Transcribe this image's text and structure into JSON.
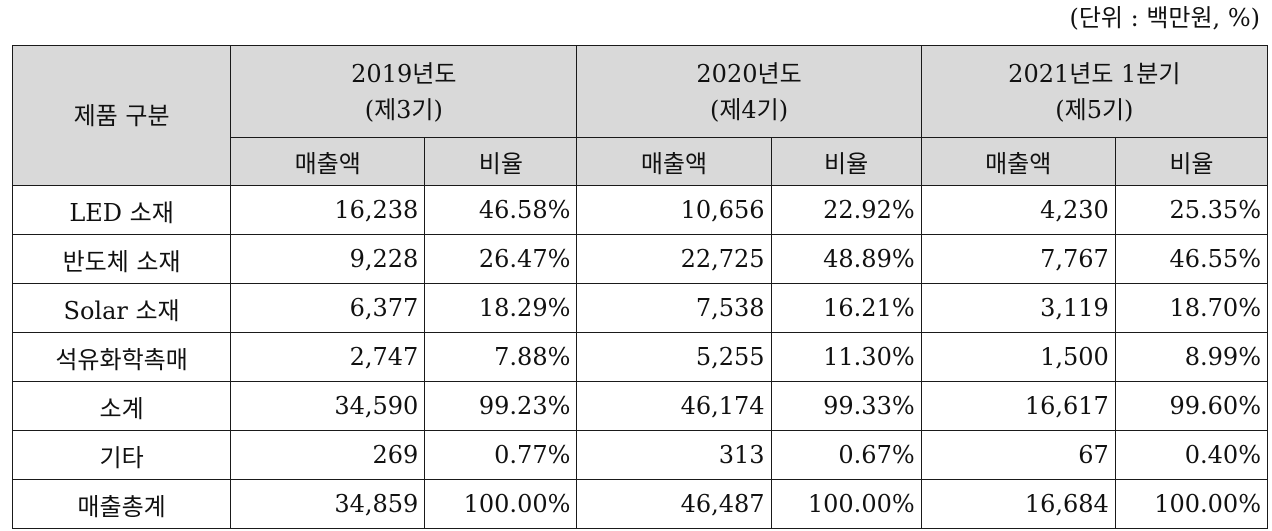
{
  "unit_note": "(단위 : 백만원, %)",
  "header": {
    "category_label": "제품 구분",
    "periods": [
      {
        "year": "2019년도",
        "term": "(제3기)"
      },
      {
        "year": "2020년도",
        "term": "(제4기)"
      },
      {
        "year": "2021년도 1분기",
        "term": "(제5기)"
      }
    ],
    "sub": {
      "sales": "매출액",
      "ratio": "비율"
    }
  },
  "rows": [
    {
      "category": "LED 소재",
      "values": [
        "16,238",
        "46.58%",
        "10,656",
        "22.92%",
        "4,230",
        "25.35%"
      ]
    },
    {
      "category": "반도체 소재",
      "values": [
        "9,228",
        "26.47%",
        "22,725",
        "48.89%",
        "7,767",
        "46.55%"
      ]
    },
    {
      "category": "Solar 소재",
      "values": [
        "6,377",
        "18.29%",
        "7,538",
        "16.21%",
        "3,119",
        "18.70%"
      ]
    },
    {
      "category": "석유화학촉매",
      "values": [
        "2,747",
        "7.88%",
        "5,255",
        "11.30%",
        "1,500",
        "8.99%"
      ]
    },
    {
      "category": "소계",
      "values": [
        "34,590",
        "99.23%",
        "46,174",
        "99.33%",
        "16,617",
        "99.60%"
      ]
    },
    {
      "category": "기타",
      "values": [
        "269",
        "0.77%",
        "313",
        "0.67%",
        "67",
        "0.40%"
      ]
    },
    {
      "category": "매출총계",
      "values": [
        "34,859",
        "100.00%",
        "46,487",
        "100.00%",
        "16,684",
        "100.00%"
      ]
    }
  ],
  "colors": {
    "header_bg": "#d9d9d9",
    "border": "#1a1a1a"
  }
}
